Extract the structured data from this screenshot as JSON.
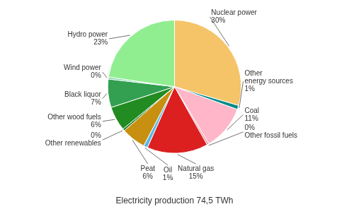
{
  "chart_data": {
    "type": "pie",
    "subtitle": "Electricity production 74,5 TWh",
    "categories": [
      "Nuclear power\n30%",
      "Other\nenergy sources\n1%",
      "Coal\n11%",
      "0%\nOther fossil fuels",
      "Natural gas\n15%",
      "Oil\n1%",
      "Peat\n6%",
      "0%\nOther renewables",
      "Other wood fuels\n6%",
      "Black liquor\n7%",
      "Wind power\n0%",
      "Hydro power\n23%"
    ],
    "values": [
      30,
      1,
      11,
      0.5,
      15,
      1,
      6,
      0.5,
      6,
      7,
      0.5,
      23
    ],
    "colors": [
      "#F5C468",
      "#008B8B",
      "#FFB6C8",
      "#E8A0A8",
      "#DC2020",
      "#5BB8E8",
      "#C89010",
      "#1A7A1A",
      "#228B22",
      "#32A050",
      "#7FD4AA",
      "#90EE90"
    ]
  }
}
